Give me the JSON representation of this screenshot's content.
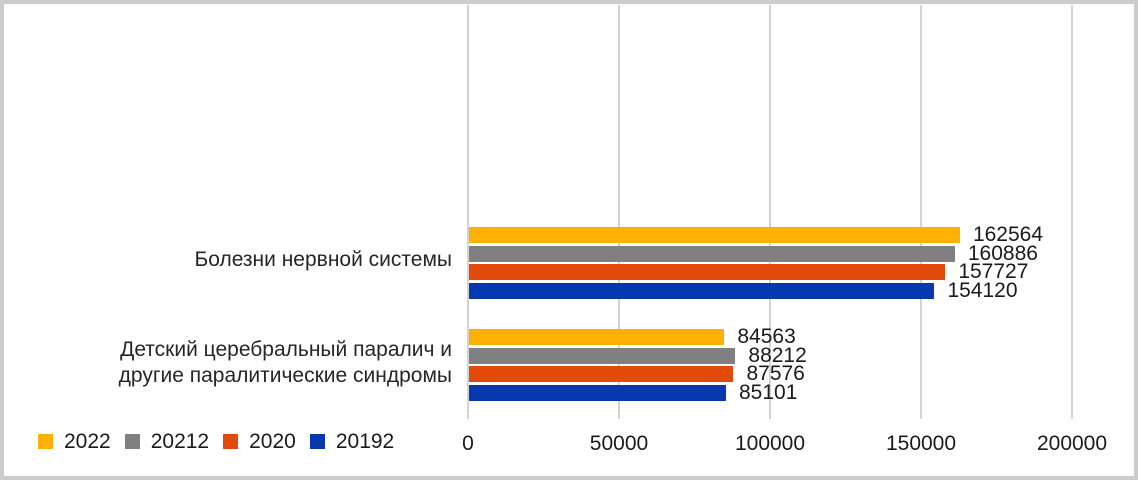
{
  "chart_data": {
    "type": "bar",
    "orientation": "horizontal",
    "title": "",
    "xlabel": "",
    "ylabel": "",
    "categories": [
      "Болезни нервной системы",
      "Детский церебральный паралич и другие паралитические синдромы"
    ],
    "categories_display": [
      [
        "Болезни нервной системы"
      ],
      [
        "Детский церебральный паралич и",
        "другие паралитические синдромы"
      ]
    ],
    "series": [
      {
        "name": "2022",
        "color": "#FFB005",
        "values": [
          162564,
          84563
        ]
      },
      {
        "name": "20212",
        "color": "#808080",
        "values": [
          160886,
          88212
        ]
      },
      {
        "name": "2020",
        "color": "#E24A0B",
        "values": [
          157727,
          87576
        ]
      },
      {
        "name": "20192",
        "color": "#0539AD",
        "values": [
          154120,
          85101
        ]
      }
    ],
    "x_ticks": [
      0,
      50000,
      100000,
      150000,
      200000
    ],
    "xlim": [
      0,
      200000
    ],
    "grid": true,
    "gridline_color": "#D3D3D3",
    "data_labels": true,
    "legend_position": "bottom-left",
    "text_color": "#1A1A1A",
    "frame_color": "#CCCCCC"
  }
}
